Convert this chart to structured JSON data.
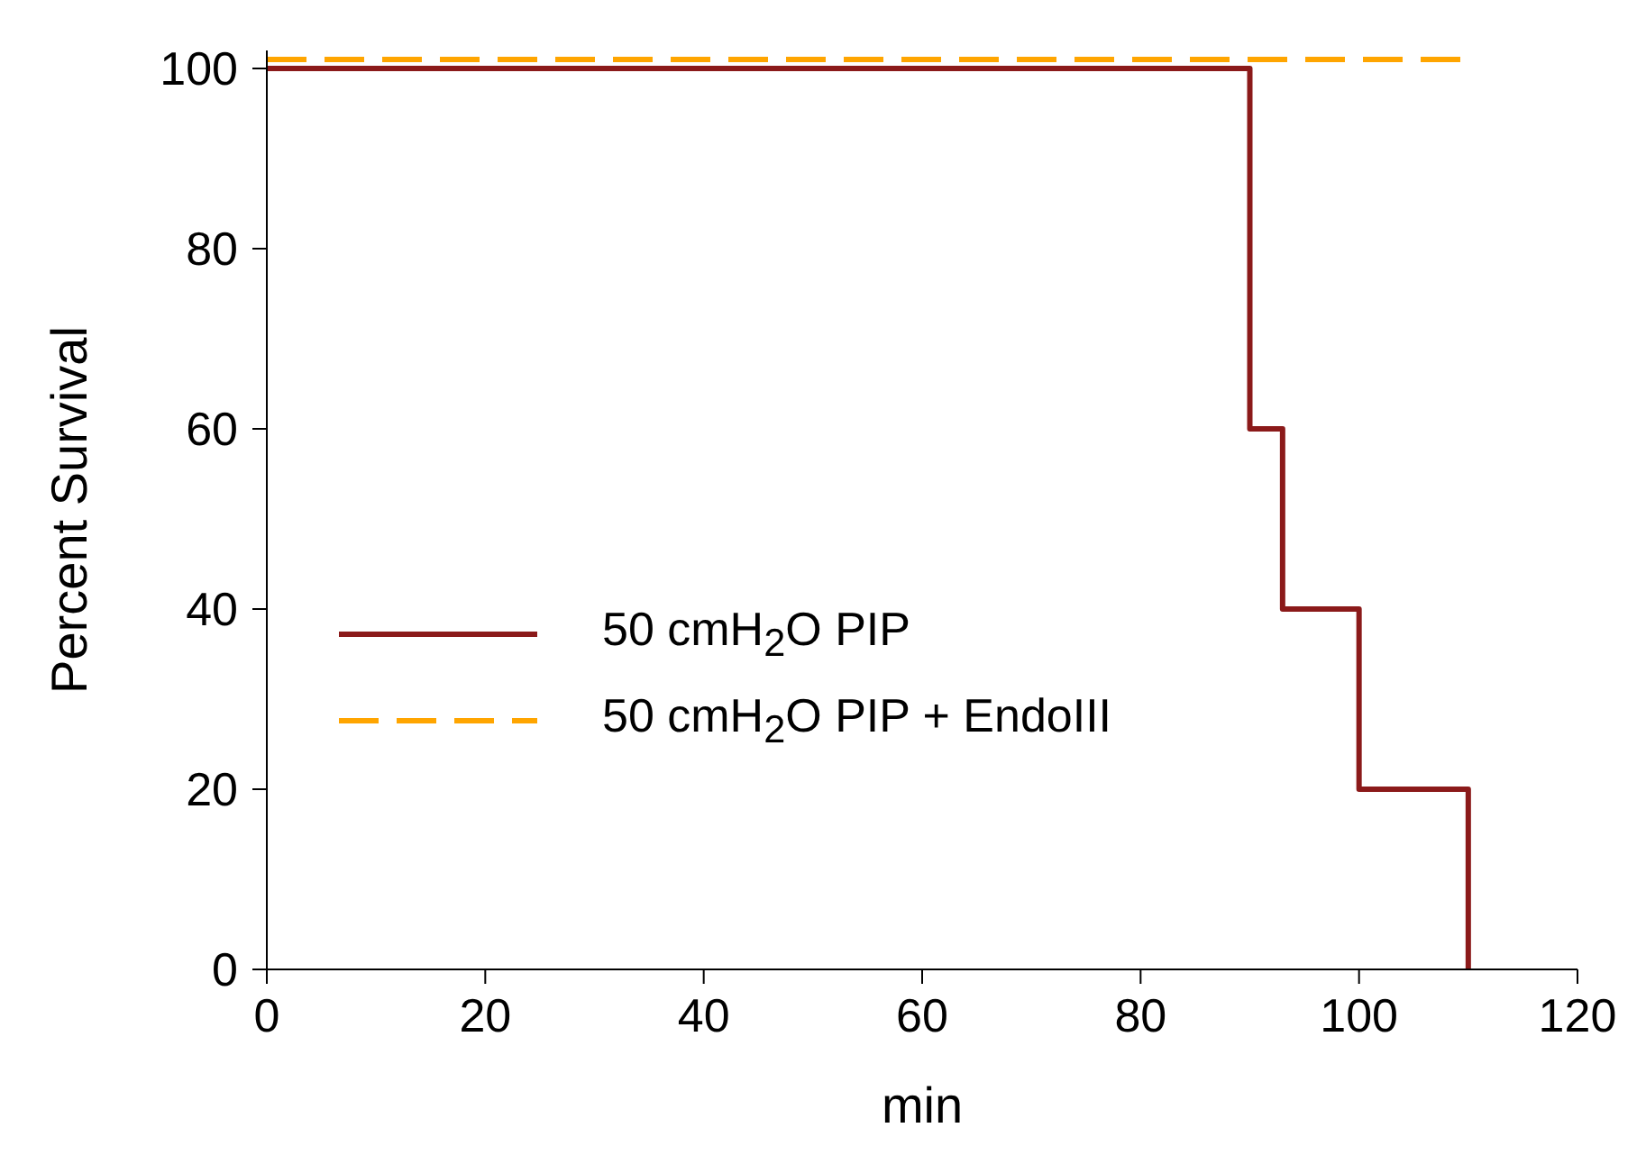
{
  "chart_data": {
    "type": "step",
    "xlabel": "min",
    "ylabel": "Percent Survival",
    "xlim": [
      0,
      120
    ],
    "xticks": [
      0,
      20,
      40,
      60,
      80,
      100,
      120
    ],
    "ylim": [
      0,
      102
    ],
    "yticks": [
      0,
      20,
      40,
      60,
      80,
      100
    ],
    "grid": false,
    "legend": "bottom left",
    "marker": "none",
    "series": [
      {
        "name": "50 cmH$_{2}$O PIP",
        "color": "#8b1a1a",
        "line_style": "solid",
        "x": [
          0,
          90,
          93,
          100,
          110,
          110
        ],
        "values": [
          100,
          60,
          40,
          20,
          0,
          0
        ]
      },
      {
        "name": "50 cmH$_{2}$O PIP + EndoIII",
        "color": "#ffa500",
        "line_style": "dashed",
        "x": [
          0,
          110
        ],
        "values": [
          101,
          101
        ]
      }
    ]
  }
}
